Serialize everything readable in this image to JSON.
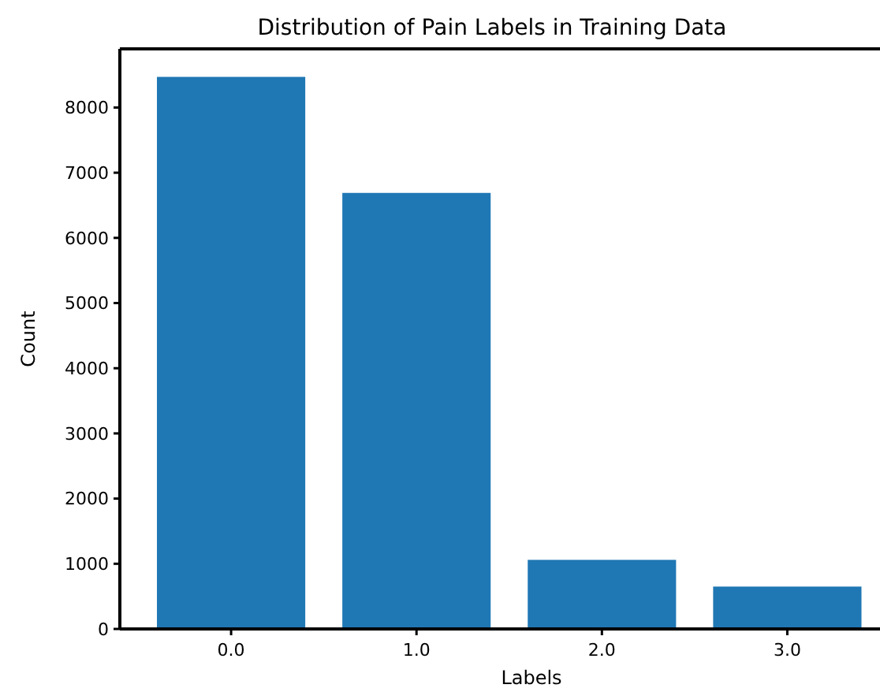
{
  "chart_data": {
    "type": "bar",
    "title": "Distribution of Pain Labels in Training Data",
    "xlabel": "Labels",
    "ylabel": "Count",
    "x": [
      0,
      1,
      2,
      3
    ],
    "values": [
      8470,
      6690,
      1060,
      650
    ],
    "color": "#1f77b4",
    "xlim": [
      -0.6,
      3.5
    ],
    "xticks": [
      {
        "value": 0,
        "label": "0.0"
      },
      {
        "value": 1,
        "label": "1.0"
      },
      {
        "value": 2,
        "label": "2.0"
      },
      {
        "value": 3,
        "label": "3.0"
      }
    ],
    "ylim": [
      0,
      8900
    ],
    "yticks": [
      0,
      1000,
      2000,
      3000,
      4000,
      5000,
      6000,
      7000,
      8000
    ],
    "grid": false
  }
}
